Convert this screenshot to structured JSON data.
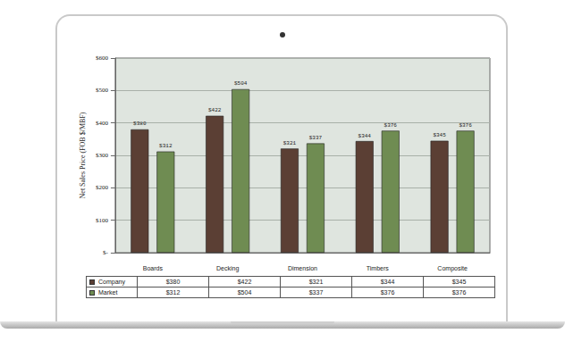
{
  "chart_data": {
    "type": "bar",
    "y_label": "Net Sales Price (FOB $/MBF)",
    "categories": [
      "Boards",
      "Decking",
      "Dimension",
      "Timbers",
      "Composite"
    ],
    "series": [
      {
        "name": "Company",
        "color": "#5b3f34",
        "values": [
          380,
          422,
          321,
          344,
          345
        ],
        "value_labels": [
          "$380",
          "$422",
          "$321",
          "$344",
          "$345"
        ]
      },
      {
        "name": "Market",
        "color": "#6f8c52",
        "values": [
          312,
          504,
          337,
          376,
          376
        ],
        "value_labels": [
          "$312",
          "$504",
          "$337",
          "$376",
          "$376"
        ]
      }
    ],
    "ylim": [
      0,
      600
    ],
    "yticks": [
      {
        "value": 0,
        "label": "$-"
      },
      {
        "value": 100,
        "label": "$100"
      },
      {
        "value": 200,
        "label": "$200"
      },
      {
        "value": 300,
        "label": "$300"
      },
      {
        "value": 400,
        "label": "$400"
      },
      {
        "value": 500,
        "label": "$500"
      },
      {
        "value": 600,
        "label": "$600"
      }
    ],
    "grid": true,
    "data_labels": true
  }
}
